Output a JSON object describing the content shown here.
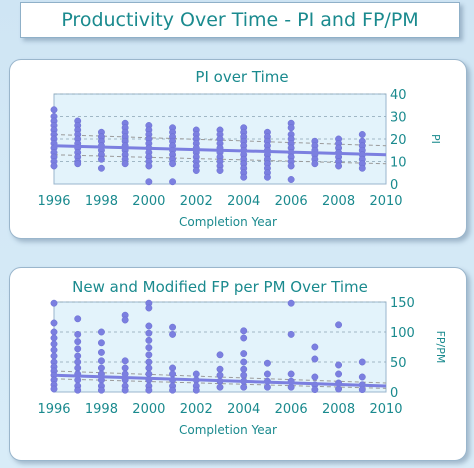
{
  "page_title": "Productivity Over Time - PI and FP/PM",
  "chart_data": [
    {
      "type": "scatter",
      "title": "PI over Time",
      "xlabel": "Completion Year",
      "ylabel": "PI",
      "xlim": [
        1996,
        2010
      ],
      "ylim": [
        0,
        40
      ],
      "xticks": [
        1996,
        1998,
        2000,
        2002,
        2004,
        2006,
        2008,
        2010
      ],
      "yticks": [
        0,
        10,
        20,
        30,
        40
      ],
      "grid": true,
      "point_color": "#7b7fe0",
      "trend_color": "#7b7fe0",
      "band_color": "#9a9a9a",
      "points": [
        {
          "x": 1996,
          "y": 33
        },
        {
          "x": 1996,
          "y": 30
        },
        {
          "x": 1996,
          "y": 28
        },
        {
          "x": 1996,
          "y": 26
        },
        {
          "x": 1996,
          "y": 24
        },
        {
          "x": 1996,
          "y": 22
        },
        {
          "x": 1996,
          "y": 20
        },
        {
          "x": 1996,
          "y": 18
        },
        {
          "x": 1996,
          "y": 16
        },
        {
          "x": 1996,
          "y": 14
        },
        {
          "x": 1996,
          "y": 12
        },
        {
          "x": 1996,
          "y": 10
        },
        {
          "x": 1996,
          "y": 8
        },
        {
          "x": 1997,
          "y": 28
        },
        {
          "x": 1997,
          "y": 26
        },
        {
          "x": 1997,
          "y": 24
        },
        {
          "x": 1997,
          "y": 22
        },
        {
          "x": 1997,
          "y": 20
        },
        {
          "x": 1997,
          "y": 18
        },
        {
          "x": 1997,
          "y": 16
        },
        {
          "x": 1997,
          "y": 14
        },
        {
          "x": 1997,
          "y": 12
        },
        {
          "x": 1997,
          "y": 10
        },
        {
          "x": 1997,
          "y": 9
        },
        {
          "x": 1998,
          "y": 23
        },
        {
          "x": 1998,
          "y": 21
        },
        {
          "x": 1998,
          "y": 19
        },
        {
          "x": 1998,
          "y": 17
        },
        {
          "x": 1998,
          "y": 15
        },
        {
          "x": 1998,
          "y": 13
        },
        {
          "x": 1998,
          "y": 11
        },
        {
          "x": 1998,
          "y": 7
        },
        {
          "x": 1999,
          "y": 27
        },
        {
          "x": 1999,
          "y": 25
        },
        {
          "x": 1999,
          "y": 23
        },
        {
          "x": 1999,
          "y": 21
        },
        {
          "x": 1999,
          "y": 19
        },
        {
          "x": 1999,
          "y": 17
        },
        {
          "x": 1999,
          "y": 15
        },
        {
          "x": 1999,
          "y": 13
        },
        {
          "x": 1999,
          "y": 11
        },
        {
          "x": 1999,
          "y": 9
        },
        {
          "x": 2000,
          "y": 26
        },
        {
          "x": 2000,
          "y": 24
        },
        {
          "x": 2000,
          "y": 22
        },
        {
          "x": 2000,
          "y": 20
        },
        {
          "x": 2000,
          "y": 18
        },
        {
          "x": 2000,
          "y": 16
        },
        {
          "x": 2000,
          "y": 14
        },
        {
          "x": 2000,
          "y": 12
        },
        {
          "x": 2000,
          "y": 10
        },
        {
          "x": 2000,
          "y": 8
        },
        {
          "x": 2000,
          "y": 1
        },
        {
          "x": 2001,
          "y": 25
        },
        {
          "x": 2001,
          "y": 23
        },
        {
          "x": 2001,
          "y": 21
        },
        {
          "x": 2001,
          "y": 19
        },
        {
          "x": 2001,
          "y": 17
        },
        {
          "x": 2001,
          "y": 15
        },
        {
          "x": 2001,
          "y": 13
        },
        {
          "x": 2001,
          "y": 11
        },
        {
          "x": 2001,
          "y": 9
        },
        {
          "x": 2001,
          "y": 1
        },
        {
          "x": 2002,
          "y": 24
        },
        {
          "x": 2002,
          "y": 22
        },
        {
          "x": 2002,
          "y": 20
        },
        {
          "x": 2002,
          "y": 18
        },
        {
          "x": 2002,
          "y": 16
        },
        {
          "x": 2002,
          "y": 14
        },
        {
          "x": 2002,
          "y": 12
        },
        {
          "x": 2002,
          "y": 10
        },
        {
          "x": 2002,
          "y": 8
        },
        {
          "x": 2002,
          "y": 6
        },
        {
          "x": 2003,
          "y": 24
        },
        {
          "x": 2003,
          "y": 22
        },
        {
          "x": 2003,
          "y": 20
        },
        {
          "x": 2003,
          "y": 18
        },
        {
          "x": 2003,
          "y": 16
        },
        {
          "x": 2003,
          "y": 14
        },
        {
          "x": 2003,
          "y": 12
        },
        {
          "x": 2003,
          "y": 10
        },
        {
          "x": 2003,
          "y": 8
        },
        {
          "x": 2003,
          "y": 6
        },
        {
          "x": 2004,
          "y": 25
        },
        {
          "x": 2004,
          "y": 23
        },
        {
          "x": 2004,
          "y": 21
        },
        {
          "x": 2004,
          "y": 19
        },
        {
          "x": 2004,
          "y": 17
        },
        {
          "x": 2004,
          "y": 15
        },
        {
          "x": 2004,
          "y": 13
        },
        {
          "x": 2004,
          "y": 11
        },
        {
          "x": 2004,
          "y": 9
        },
        {
          "x": 2004,
          "y": 7
        },
        {
          "x": 2004,
          "y": 5
        },
        {
          "x": 2004,
          "y": 3
        },
        {
          "x": 2005,
          "y": 23
        },
        {
          "x": 2005,
          "y": 21
        },
        {
          "x": 2005,
          "y": 19
        },
        {
          "x": 2005,
          "y": 17
        },
        {
          "x": 2005,
          "y": 15
        },
        {
          "x": 2005,
          "y": 13
        },
        {
          "x": 2005,
          "y": 11
        },
        {
          "x": 2005,
          "y": 9
        },
        {
          "x": 2005,
          "y": 7
        },
        {
          "x": 2005,
          "y": 5
        },
        {
          "x": 2005,
          "y": 3
        },
        {
          "x": 2006,
          "y": 27
        },
        {
          "x": 2006,
          "y": 25
        },
        {
          "x": 2006,
          "y": 22
        },
        {
          "x": 2006,
          "y": 20
        },
        {
          "x": 2006,
          "y": 18
        },
        {
          "x": 2006,
          "y": 16
        },
        {
          "x": 2006,
          "y": 14
        },
        {
          "x": 2006,
          "y": 12
        },
        {
          "x": 2006,
          "y": 10
        },
        {
          "x": 2006,
          "y": 8
        },
        {
          "x": 2006,
          "y": 2
        },
        {
          "x": 2007,
          "y": 19
        },
        {
          "x": 2007,
          "y": 17
        },
        {
          "x": 2007,
          "y": 15
        },
        {
          "x": 2007,
          "y": 13
        },
        {
          "x": 2007,
          "y": 11
        },
        {
          "x": 2007,
          "y": 9
        },
        {
          "x": 2008,
          "y": 20
        },
        {
          "x": 2008,
          "y": 18
        },
        {
          "x": 2008,
          "y": 16
        },
        {
          "x": 2008,
          "y": 14
        },
        {
          "x": 2008,
          "y": 12
        },
        {
          "x": 2008,
          "y": 10
        },
        {
          "x": 2008,
          "y": 8
        },
        {
          "x": 2009,
          "y": 22
        },
        {
          "x": 2009,
          "y": 19
        },
        {
          "x": 2009,
          "y": 17
        },
        {
          "x": 2009,
          "y": 15
        },
        {
          "x": 2009,
          "y": 13
        },
        {
          "x": 2009,
          "y": 11
        },
        {
          "x": 2009,
          "y": 9
        },
        {
          "x": 2009,
          "y": 7
        }
      ],
      "trend": {
        "x": [
          1996,
          2010
        ],
        "y": [
          17,
          13
        ]
      },
      "band_upper": {
        "x": [
          1996,
          2010
        ],
        "y": [
          22,
          17
        ]
      },
      "band_lower": {
        "x": [
          1996,
          2010
        ],
        "y": [
          13,
          9
        ]
      }
    },
    {
      "type": "scatter",
      "title": "New and Modified FP per PM Over Time",
      "xlabel": "Completion Year",
      "ylabel": "FP/PM",
      "xlim": [
        1996,
        2010
      ],
      "ylim": [
        0,
        150
      ],
      "xticks": [
        1996,
        1998,
        2000,
        2002,
        2004,
        2006,
        2008,
        2010
      ],
      "yticks": [
        0,
        50,
        100,
        150
      ],
      "grid": true,
      "point_color": "#7b7fe0",
      "trend_color": "#7b7fe0",
      "band_color": "#9a9a9a",
      "points": [
        {
          "x": 1996,
          "y": 148
        },
        {
          "x": 1996,
          "y": 115
        },
        {
          "x": 1996,
          "y": 100
        },
        {
          "x": 1996,
          "y": 90
        },
        {
          "x": 1996,
          "y": 80
        },
        {
          "x": 1996,
          "y": 70
        },
        {
          "x": 1996,
          "y": 60
        },
        {
          "x": 1996,
          "y": 50
        },
        {
          "x": 1996,
          "y": 42
        },
        {
          "x": 1996,
          "y": 35
        },
        {
          "x": 1996,
          "y": 28
        },
        {
          "x": 1996,
          "y": 20
        },
        {
          "x": 1996,
          "y": 12
        },
        {
          "x": 1996,
          "y": 5
        },
        {
          "x": 1997,
          "y": 122
        },
        {
          "x": 1997,
          "y": 96
        },
        {
          "x": 1997,
          "y": 84
        },
        {
          "x": 1997,
          "y": 72
        },
        {
          "x": 1997,
          "y": 60
        },
        {
          "x": 1997,
          "y": 50
        },
        {
          "x": 1997,
          "y": 40
        },
        {
          "x": 1997,
          "y": 30
        },
        {
          "x": 1997,
          "y": 20
        },
        {
          "x": 1997,
          "y": 10
        },
        {
          "x": 1997,
          "y": 3
        },
        {
          "x": 1998,
          "y": 100
        },
        {
          "x": 1998,
          "y": 82
        },
        {
          "x": 1998,
          "y": 66
        },
        {
          "x": 1998,
          "y": 52
        },
        {
          "x": 1998,
          "y": 40
        },
        {
          "x": 1998,
          "y": 30
        },
        {
          "x": 1998,
          "y": 20
        },
        {
          "x": 1998,
          "y": 10
        },
        {
          "x": 1998,
          "y": 3
        },
        {
          "x": 1999,
          "y": 128
        },
        {
          "x": 1999,
          "y": 120
        },
        {
          "x": 1999,
          "y": 52
        },
        {
          "x": 1999,
          "y": 40
        },
        {
          "x": 1999,
          "y": 30
        },
        {
          "x": 1999,
          "y": 20
        },
        {
          "x": 1999,
          "y": 10
        },
        {
          "x": 1999,
          "y": 3
        },
        {
          "x": 2000,
          "y": 148
        },
        {
          "x": 2000,
          "y": 140
        },
        {
          "x": 2000,
          "y": 110
        },
        {
          "x": 2000,
          "y": 98
        },
        {
          "x": 2000,
          "y": 86
        },
        {
          "x": 2000,
          "y": 74
        },
        {
          "x": 2000,
          "y": 62
        },
        {
          "x": 2000,
          "y": 50
        },
        {
          "x": 2000,
          "y": 40
        },
        {
          "x": 2000,
          "y": 30
        },
        {
          "x": 2000,
          "y": 20
        },
        {
          "x": 2000,
          "y": 10
        },
        {
          "x": 2000,
          "y": 3
        },
        {
          "x": 2001,
          "y": 108
        },
        {
          "x": 2001,
          "y": 96
        },
        {
          "x": 2001,
          "y": 40
        },
        {
          "x": 2001,
          "y": 30
        },
        {
          "x": 2001,
          "y": 20
        },
        {
          "x": 2001,
          "y": 10
        },
        {
          "x": 2001,
          "y": 3
        },
        {
          "x": 2002,
          "y": 30
        },
        {
          "x": 2002,
          "y": 20
        },
        {
          "x": 2002,
          "y": 10
        },
        {
          "x": 2002,
          "y": 3
        },
        {
          "x": 2003,
          "y": 62
        },
        {
          "x": 2003,
          "y": 38
        },
        {
          "x": 2003,
          "y": 28
        },
        {
          "x": 2003,
          "y": 18
        },
        {
          "x": 2003,
          "y": 8
        },
        {
          "x": 2004,
          "y": 102
        },
        {
          "x": 2004,
          "y": 90
        },
        {
          "x": 2004,
          "y": 64
        },
        {
          "x": 2004,
          "y": 50
        },
        {
          "x": 2004,
          "y": 38
        },
        {
          "x": 2004,
          "y": 28
        },
        {
          "x": 2004,
          "y": 18
        },
        {
          "x": 2004,
          "y": 8
        },
        {
          "x": 2005,
          "y": 48
        },
        {
          "x": 2005,
          "y": 30
        },
        {
          "x": 2005,
          "y": 18
        },
        {
          "x": 2005,
          "y": 8
        },
        {
          "x": 2006,
          "y": 148
        },
        {
          "x": 2006,
          "y": 96
        },
        {
          "x": 2006,
          "y": 30
        },
        {
          "x": 2006,
          "y": 18
        },
        {
          "x": 2006,
          "y": 8
        },
        {
          "x": 2007,
          "y": 75
        },
        {
          "x": 2007,
          "y": 55
        },
        {
          "x": 2007,
          "y": 25
        },
        {
          "x": 2007,
          "y": 12
        },
        {
          "x": 2007,
          "y": 4
        },
        {
          "x": 2008,
          "y": 112
        },
        {
          "x": 2008,
          "y": 45
        },
        {
          "x": 2008,
          "y": 30
        },
        {
          "x": 2008,
          "y": 15
        },
        {
          "x": 2008,
          "y": 5
        },
        {
          "x": 2009,
          "y": 50
        },
        {
          "x": 2009,
          "y": 25
        },
        {
          "x": 2009,
          "y": 12
        },
        {
          "x": 2009,
          "y": 4
        }
      ],
      "trend": {
        "x": [
          1996,
          2010
        ],
        "y": [
          28,
          10
        ]
      },
      "band_upper": {
        "x": [
          1996,
          2010
        ],
        "y": [
          35,
          15
        ]
      },
      "band_lower": {
        "x": [
          1996,
          2010
        ],
        "y": [
          22,
          6
        ]
      }
    }
  ]
}
